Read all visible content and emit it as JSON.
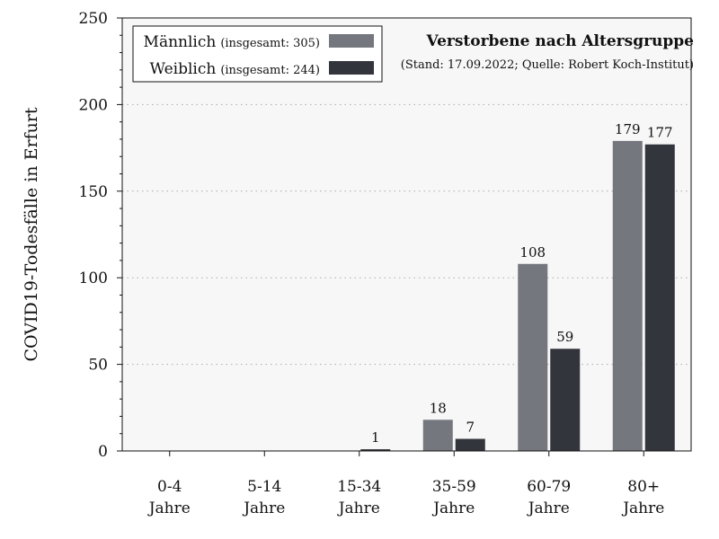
{
  "colors": {
    "male": "#74777e",
    "female": "#32353b",
    "plot_bg": "#f7f7f7",
    "grid": "#aaaaaa"
  },
  "chart_data": {
    "type": "bar",
    "title": "Verstorbene nach Altersgruppe",
    "subtitle": "(Stand: 17.09.2022; Quelle: Robert Koch-Institut)",
    "ylabel": "COVID19-Todesfälle in Erfurt",
    "xlabel": "",
    "ylim": [
      0,
      250
    ],
    "yticks": [
      "0",
      "50",
      "100",
      "150",
      "200",
      "250"
    ],
    "ytick_values": [
      0,
      50,
      100,
      150,
      200,
      250
    ],
    "grid": "horizontal-dotted",
    "legend_position": "top-left",
    "categories": [
      [
        "0-4",
        "Jahre"
      ],
      [
        "5-14",
        "Jahre"
      ],
      [
        "15-34",
        "Jahre"
      ],
      [
        "35-59",
        "Jahre"
      ],
      [
        "60-79",
        "Jahre"
      ],
      [
        "80+",
        "Jahre"
      ]
    ],
    "series": [
      {
        "name": "Männlich",
        "total_label": "(insgesamt: 305)",
        "values": [
          0,
          0,
          0,
          18,
          108,
          179
        ],
        "color": "#74777e"
      },
      {
        "name": "Weiblich",
        "total_label": "(insgesamt: 244)",
        "values": [
          0,
          0,
          1,
          7,
          59,
          177
        ],
        "color": "#32353b"
      }
    ]
  }
}
